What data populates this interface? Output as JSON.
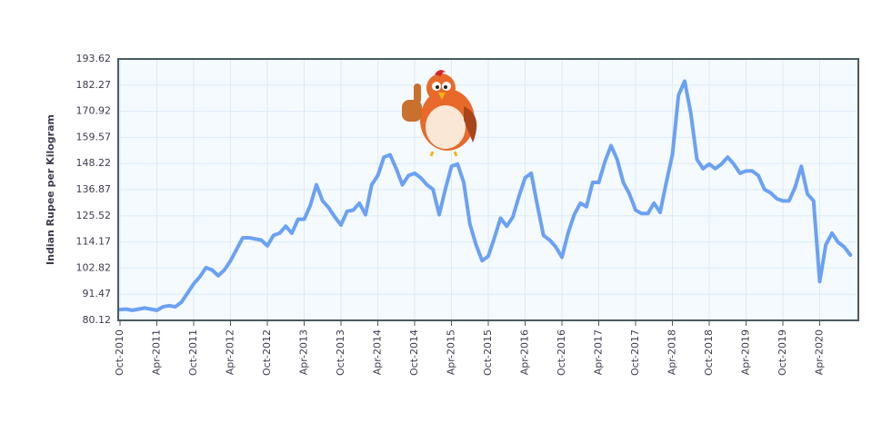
{
  "chart_data": {
    "type": "line",
    "y_label": "Indian Rupee per Kilogram",
    "categories": [
      "Oct-2010",
      null,
      null,
      null,
      null,
      null,
      "Apr-2011",
      null,
      null,
      null,
      null,
      null,
      "Oct-2011",
      null,
      null,
      null,
      null,
      null,
      "Apr-2012",
      null,
      null,
      null,
      null,
      null,
      "Oct-2012",
      null,
      null,
      null,
      null,
      null,
      "Apr-2013",
      null,
      null,
      null,
      null,
      null,
      "Oct-2013",
      null,
      null,
      null,
      null,
      null,
      "Apr-2014",
      null,
      null,
      null,
      null,
      null,
      "Oct-2014",
      null,
      null,
      null,
      null,
      null,
      "Apr-2015",
      null,
      null,
      null,
      null,
      null,
      "Oct-2015",
      null,
      null,
      null,
      null,
      null,
      "Apr-2016",
      null,
      null,
      null,
      null,
      null,
      "Oct-2016",
      null,
      null,
      null,
      null,
      null,
      "Apr-2017",
      null,
      null,
      null,
      null,
      null,
      "Oct-2017",
      null,
      null,
      null,
      null,
      null,
      "Apr-2018",
      null,
      null,
      null,
      null,
      null,
      "Oct-2018",
      null,
      null,
      null,
      null,
      null,
      "Apr-2019",
      null,
      null,
      null,
      null,
      null,
      "Oct-2019",
      null,
      null,
      null,
      null,
      null,
      "Apr-2020",
      null,
      null,
      null,
      null,
      null
    ],
    "values": [
      84.8,
      85,
      84.5,
      85,
      85.5,
      85,
      84.5,
      86,
      86.5,
      86,
      88,
      92,
      96,
      99,
      103,
      102,
      99.5,
      102,
      106,
      111,
      116,
      116,
      115.5,
      115,
      112.5,
      117,
      118,
      121,
      118,
      124,
      124,
      130,
      139,
      132,
      129,
      125,
      121.5,
      127.5,
      128,
      131,
      126,
      139,
      143,
      151,
      152,
      146,
      139,
      143,
      144,
      142,
      139,
      137,
      126,
      137,
      147,
      148,
      140,
      122,
      113,
      106,
      108,
      116,
      124.5,
      121,
      125,
      134,
      142,
      144,
      130,
      117,
      115,
      112,
      107.5,
      118,
      126,
      131,
      129.5,
      140,
      140,
      149,
      156,
      150,
      140,
      135,
      128,
      126.5,
      126.5,
      131,
      127,
      140,
      152,
      178,
      184,
      170,
      150,
      146,
      148,
      146,
      148,
      151,
      148,
      144,
      145,
      145,
      143,
      137,
      135.5,
      133,
      132,
      132,
      138,
      147,
      135,
      132,
      97,
      113,
      118,
      114,
      112,
      108.5
    ],
    "color": "#6ba1f5",
    "ylim": [
      80.12,
      193.62
    ],
    "yticks": [
      80.12,
      91.47,
      102.82,
      114.17,
      125.52,
      136.87,
      148.22,
      159.57,
      170.92,
      182.27,
      193.62
    ],
    "grid": true
  }
}
